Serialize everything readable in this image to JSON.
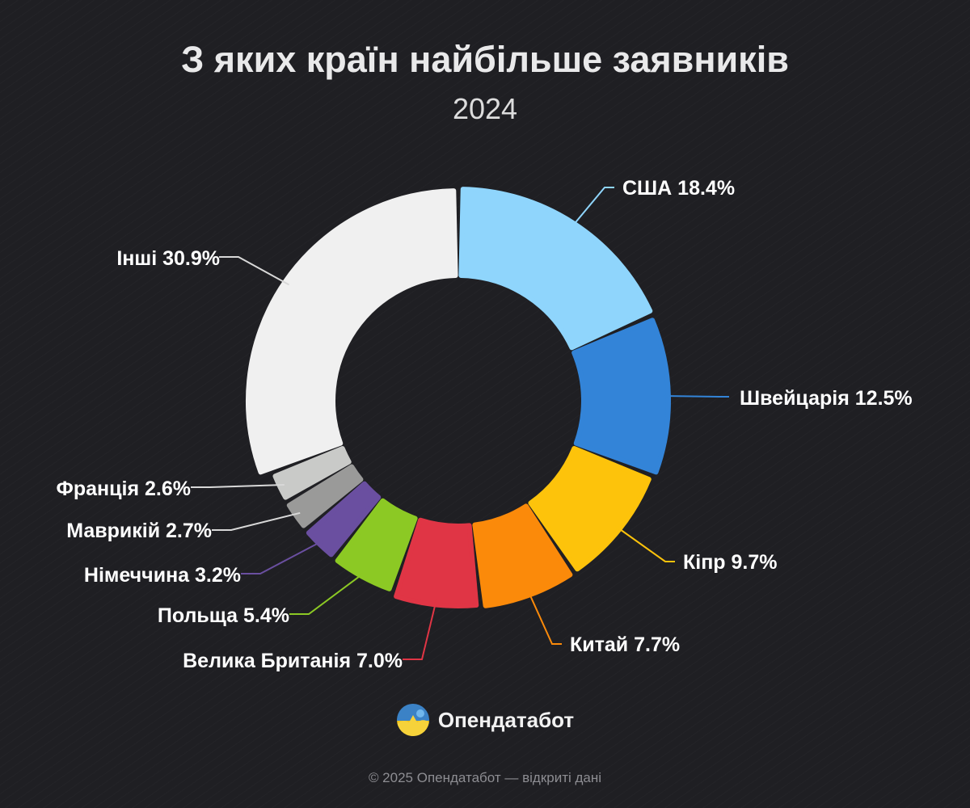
{
  "title": "З яких країн найбільше заявників",
  "subtitle": "2024",
  "brand": {
    "name": "Опендатабот"
  },
  "footer": "© 2025 Опендатабот — відкриті дані",
  "chart_data": {
    "type": "pie",
    "title": "З яких країн найбільше заявників",
    "subtitle": "2024",
    "unit": "%",
    "categories": [
      "США",
      "Швейцарія",
      "Кіпр",
      "Китай",
      "Велика Британія",
      "Польща",
      "Німеччина",
      "Маврикій",
      "Франція",
      "Інші"
    ],
    "values": [
      18.4,
      12.5,
      9.7,
      7.7,
      7.0,
      5.4,
      3.2,
      2.7,
      2.6,
      30.9
    ],
    "labels": [
      "США 18.4%",
      "Швейцарія 12.5%",
      "Кіпр 9.7%",
      "Китай 7.7%",
      "Велика Британія 7.0%",
      "Польща 5.4%",
      "Німеччина 3.2%",
      "Маврикій 2.7%",
      "Франція 2.6%",
      "Інші 30.9%"
    ],
    "colors": [
      "#8fd5fc",
      "#3384d8",
      "#fdc30b",
      "#fb8a0a",
      "#e03545",
      "#8cc924",
      "#6a4fa0",
      "#9a9a99",
      "#c9cac8",
      "#f0f0f0"
    ]
  }
}
